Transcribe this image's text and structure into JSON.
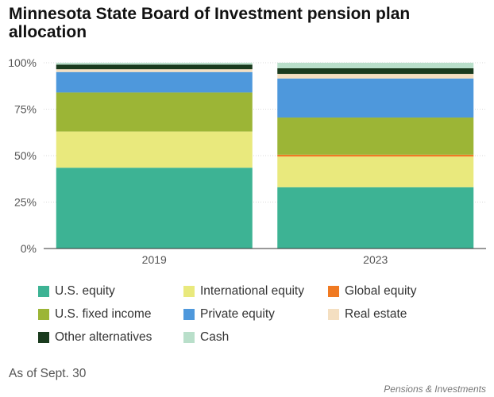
{
  "chart_data": {
    "type": "bar",
    "stacked": true,
    "title": "Minnesota State Board of Investment pension plan allocation",
    "categories": [
      "2019",
      "2023"
    ],
    "yticks": [
      "0%",
      "25%",
      "50%",
      "75%",
      "100%"
    ],
    "ylim": [
      0,
      100
    ],
    "grid": true,
    "legend_position": "bottom",
    "series": [
      {
        "name": "U.S. equity",
        "color": "#3db394",
        "values": [
          43.5,
          33
        ]
      },
      {
        "name": "International equity",
        "color": "#e9e97d",
        "values": [
          19.5,
          16.5
        ]
      },
      {
        "name": "Global equity",
        "color": "#f07a22",
        "values": [
          0,
          1
        ]
      },
      {
        "name": "U.S. fixed income",
        "color": "#9cb536",
        "values": [
          21,
          20
        ]
      },
      {
        "name": "Private equity",
        "color": "#4e98dc",
        "values": [
          11,
          21
        ]
      },
      {
        "name": "Real estate",
        "color": "#f4dfc1",
        "values": [
          1.5,
          2.5
        ]
      },
      {
        "name": "Other alternatives",
        "color": "#1a3b1e",
        "values": [
          2.5,
          3
        ]
      },
      {
        "name": "Cash",
        "color": "#b9dfca",
        "values": [
          1,
          3
        ]
      }
    ]
  },
  "note": "As of Sept. 30",
  "source": "Pensions & Investments"
}
